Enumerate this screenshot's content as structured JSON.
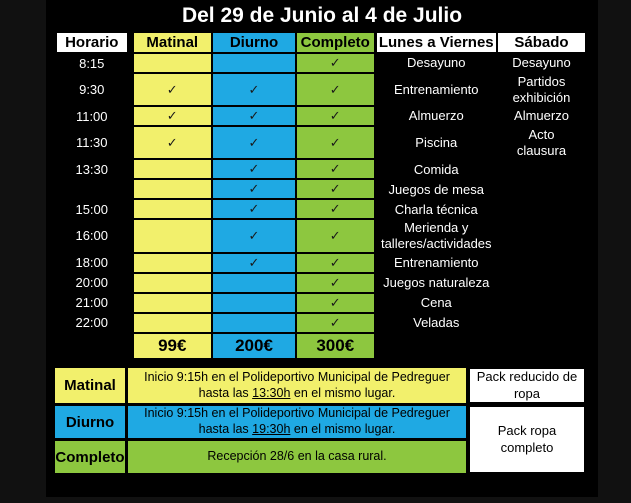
{
  "title": "Del 29 de Junio al 4 de Julio",
  "colors": {
    "yellow": "#F2F06C",
    "blue": "#1FA9E3",
    "green": "#8DC73F",
    "check": "#1A1A1A",
    "background": "#000000",
    "text_light": "#FFFFFF"
  },
  "schedule": {
    "headers": [
      "Horario",
      "Matinal",
      "Diurno",
      "Completo",
      "Lunes a Viernes",
      "Sábado"
    ],
    "check_glyph": "✓",
    "rows": [
      {
        "time": "8:15",
        "checks": [
          false,
          false,
          true
        ],
        "weekdays": "Desayuno",
        "saturday": "Desayuno",
        "tall": false
      },
      {
        "time": "9:30",
        "checks": [
          true,
          true,
          true
        ],
        "weekdays": "Entrenamiento",
        "saturday": "Partidos\nexhibición",
        "tall": true
      },
      {
        "time": "11:00",
        "checks": [
          true,
          true,
          true
        ],
        "weekdays": "Almuerzo",
        "saturday": "Almuerzo",
        "tall": false
      },
      {
        "time": "11:30",
        "checks": [
          true,
          true,
          true
        ],
        "weekdays": "Piscina",
        "saturday": "Acto\nclausura",
        "tall": true
      },
      {
        "time": "13:30",
        "checks": [
          false,
          true,
          true
        ],
        "weekdays": "Comida",
        "saturday": "",
        "tall": false
      },
      {
        "time": "",
        "checks": [
          false,
          true,
          true
        ],
        "weekdays": "Juegos de mesa",
        "saturday": "",
        "tall": false
      },
      {
        "time": "15:00",
        "checks": [
          false,
          true,
          true
        ],
        "weekdays": "Charla técnica",
        "saturday": "",
        "tall": false
      },
      {
        "time": "16:00",
        "checks": [
          false,
          true,
          true
        ],
        "weekdays": "Merienda y\ntalleres/actividades",
        "saturday": "",
        "tall": true
      },
      {
        "time": "18:00",
        "checks": [
          false,
          true,
          true
        ],
        "weekdays": "Entrenamiento",
        "saturday": "",
        "tall": false
      },
      {
        "time": "20:00",
        "checks": [
          false,
          false,
          true
        ],
        "weekdays": "Juegos naturaleza",
        "saturday": "",
        "tall": false
      },
      {
        "time": "21:00",
        "checks": [
          false,
          false,
          true
        ],
        "weekdays": "Cena",
        "saturday": "",
        "tall": false
      },
      {
        "time": "22:00",
        "checks": [
          false,
          false,
          true
        ],
        "weekdays": "Veladas",
        "saturday": "",
        "tall": false
      }
    ],
    "price_row": {
      "matinal": "99€",
      "diurno": "200€",
      "completo": "300€"
    }
  },
  "legend": {
    "rows": [
      {
        "label": "Matinal",
        "line1": "Inicio 9:15h en el Polideportivo Municipal de Pedreguer",
        "line2_pre": "hasta las ",
        "line2_time": "13:30h",
        "line2_post": " en el mismo lugar."
      },
      {
        "label": "Diurno",
        "line1": "Inicio 9:15h en el Polideportivo Municipal de Pedreguer",
        "line2_pre": "hasta las ",
        "line2_time": "19:30h",
        "line2_post": " en el mismo lugar."
      },
      {
        "label": "Completo",
        "line1": "Recepción 28/6 en la casa rural.",
        "line2_pre": "",
        "line2_time": "",
        "line2_post": ""
      }
    ],
    "pack_top": "Pack reducido de\nropa",
    "pack_bottom": "Pack ropa\ncompleto"
  }
}
